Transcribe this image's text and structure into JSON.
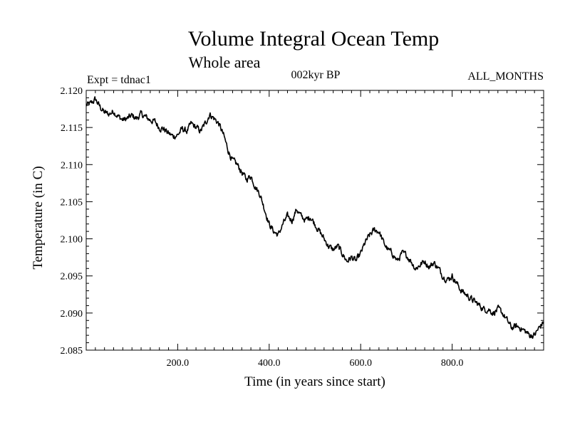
{
  "chart_data": {
    "type": "line",
    "title": "Volume Integral Ocean Temp",
    "subtitle": "Whole area",
    "annotations": {
      "left": "Expt = tdnac1",
      "center": "002kyr BP",
      "right": "ALL_MONTHS"
    },
    "xlabel": "Time (in years since start)",
    "ylabel": "Temperature (in C)",
    "xlim": [
      0,
      1000
    ],
    "ylim": [
      2.085,
      2.12
    ],
    "x_ticks": [
      {
        "value": 200,
        "label": "200.0"
      },
      {
        "value": 400,
        "label": "400.0"
      },
      {
        "value": 600,
        "label": "600.0"
      },
      {
        "value": 800,
        "label": "800.0"
      }
    ],
    "y_ticks": [
      {
        "value": 2.085,
        "label": "2.085"
      },
      {
        "value": 2.09,
        "label": "2.090"
      },
      {
        "value": 2.095,
        "label": "2.095"
      },
      {
        "value": 2.1,
        "label": "2.100"
      },
      {
        "value": 2.105,
        "label": "2.105"
      },
      {
        "value": 2.11,
        "label": "2.110"
      },
      {
        "value": 2.115,
        "label": "2.115"
      },
      {
        "value": 2.12,
        "label": "2.120"
      }
    ],
    "series": [
      {
        "name": "Volume Integral Ocean Temp",
        "color": "#000000",
        "x": [
          0,
          10,
          20,
          30,
          40,
          50,
          60,
          70,
          80,
          90,
          100,
          110,
          120,
          130,
          140,
          150,
          160,
          170,
          180,
          190,
          200,
          210,
          220,
          230,
          240,
          250,
          260,
          270,
          280,
          290,
          300,
          310,
          320,
          330,
          340,
          350,
          360,
          370,
          380,
          390,
          400,
          410,
          420,
          430,
          440,
          450,
          460,
          470,
          480,
          490,
          500,
          510,
          520,
          530,
          540,
          550,
          560,
          570,
          580,
          590,
          600,
          610,
          620,
          630,
          640,
          650,
          660,
          670,
          680,
          690,
          700,
          710,
          720,
          730,
          740,
          750,
          760,
          770,
          780,
          790,
          800,
          810,
          820,
          830,
          840,
          850,
          860,
          870,
          880,
          890,
          900,
          910,
          920,
          930,
          940,
          950,
          960,
          970,
          980,
          990,
          1000
        ],
        "y": [
          2.118,
          2.1182,
          2.1188,
          2.1178,
          2.117,
          2.1168,
          2.1172,
          2.1165,
          2.116,
          2.1162,
          2.1166,
          2.1162,
          2.1168,
          2.1164,
          2.116,
          2.1158,
          2.115,
          2.1148,
          2.1142,
          2.1138,
          2.114,
          2.1148,
          2.1145,
          2.1155,
          2.115,
          2.1145,
          2.1155,
          2.1168,
          2.1162,
          2.1155,
          2.114,
          2.112,
          2.1105,
          2.11,
          2.109,
          2.108,
          2.1085,
          2.107,
          2.106,
          2.104,
          2.102,
          2.101,
          2.1005,
          2.102,
          2.103,
          2.1025,
          2.104,
          2.103,
          2.1025,
          2.103,
          2.102,
          2.101,
          2.1,
          2.099,
          2.0985,
          2.099,
          2.098,
          2.097,
          2.0975,
          2.097,
          2.098,
          2.0995,
          2.1005,
          2.1012,
          2.101,
          2.0995,
          2.0985,
          2.098,
          2.097,
          2.098,
          2.0978,
          2.097,
          2.096,
          2.0965,
          2.097,
          2.0962,
          2.0968,
          2.096,
          2.095,
          2.0945,
          2.095,
          2.094,
          2.093,
          2.0925,
          2.092,
          2.0915,
          2.091,
          2.0905,
          2.0905,
          2.09,
          2.0905,
          2.09,
          2.089,
          2.088,
          2.0882,
          2.088,
          2.0875,
          2.087,
          2.087,
          2.088,
          2.0888
        ]
      }
    ]
  }
}
